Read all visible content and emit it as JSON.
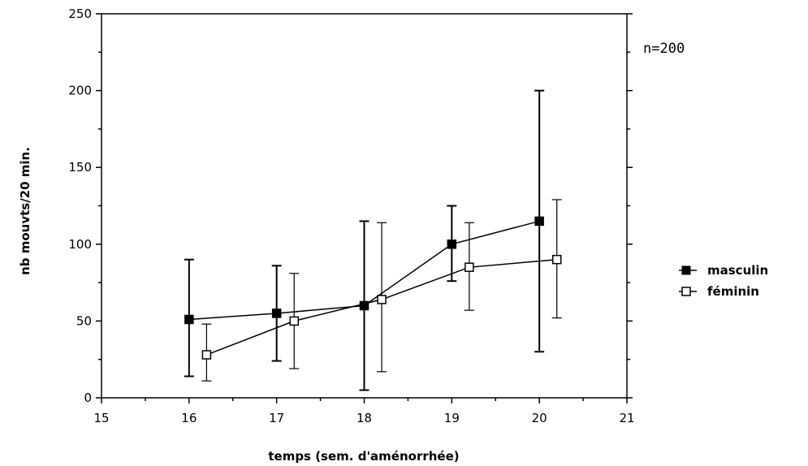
{
  "chart_data": {
    "type": "line",
    "title": "",
    "xlabel": "temps (sem. d'aménorrhée)",
    "ylabel": "nb mouvts/20 min.",
    "xlim": [
      15,
      21
    ],
    "ylim": [
      0,
      250
    ],
    "x_ticks": [
      "15",
      "16",
      "17",
      "18",
      "19",
      "20",
      "21"
    ],
    "y_ticks": [
      "0",
      "50",
      "100",
      "150",
      "200",
      "250"
    ],
    "annotation": "n=200",
    "legend_position": "right",
    "grid": false,
    "series": [
      {
        "name": "masculin",
        "marker": "filled-square",
        "color": "#000000",
        "x": [
          16,
          17,
          18,
          19,
          20
        ],
        "y": [
          51,
          55,
          60,
          100,
          115
        ],
        "err_low": [
          14,
          24,
          5,
          76,
          30
        ],
        "err_high": [
          90,
          86,
          115,
          125,
          200
        ]
      },
      {
        "name": "féminin",
        "marker": "open-square",
        "color": "#000000",
        "x": [
          16.2,
          17.2,
          18.2,
          19.2,
          20.2
        ],
        "y": [
          28,
          50,
          64,
          85,
          90
        ],
        "err_low": [
          11,
          19,
          17,
          57,
          52
        ],
        "err_high": [
          48,
          81,
          114,
          114,
          129
        ]
      }
    ]
  }
}
